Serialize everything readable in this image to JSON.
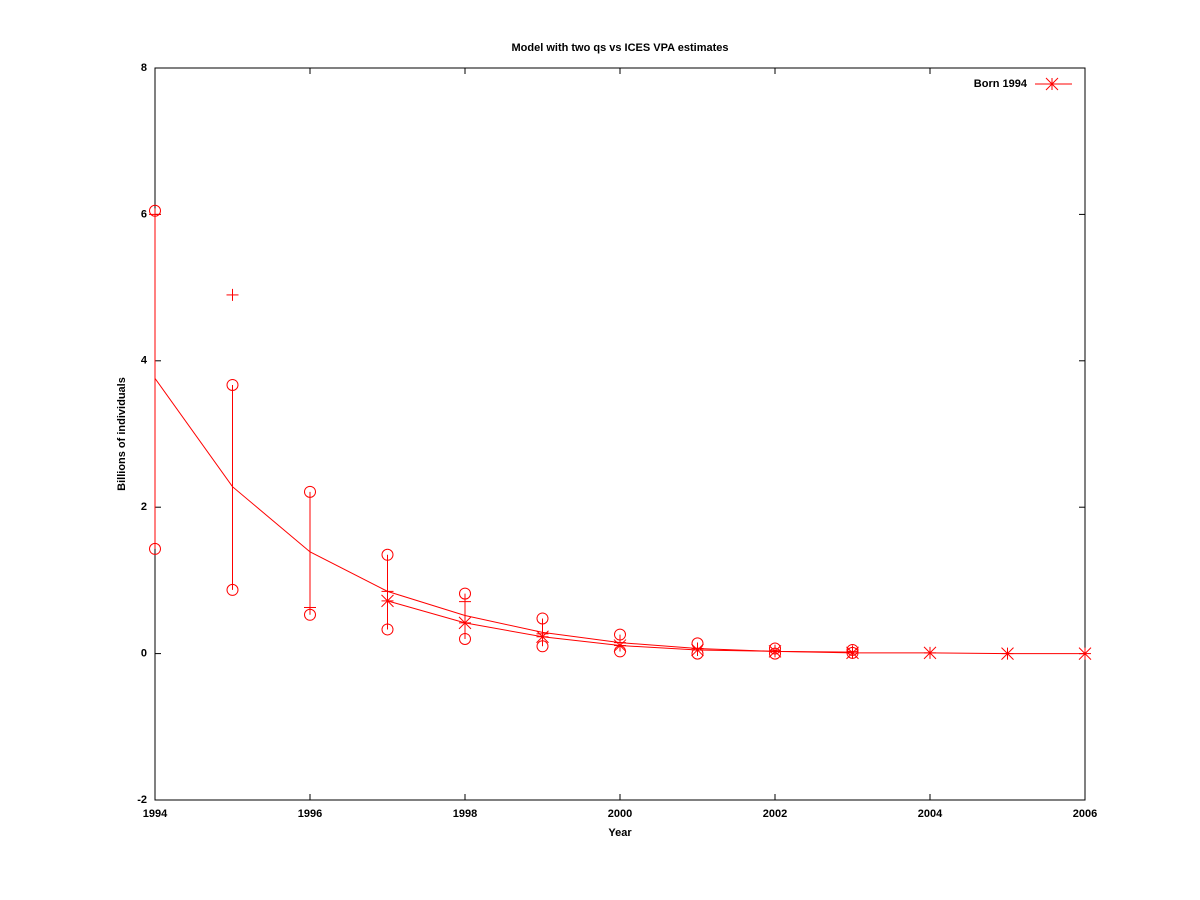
{
  "chart_data": {
    "type": "line",
    "title": "Model with two qs vs ICES VPA estimates",
    "xlabel": "Year",
    "ylabel": "Billions of individuals",
    "xlim": [
      1994,
      2006
    ],
    "xticks": [
      1994,
      1996,
      1998,
      2000,
      2002,
      2004,
      2006
    ],
    "ylim": [
      -2,
      8
    ],
    "yticks": [
      -2,
      0,
      2,
      4,
      6,
      8
    ],
    "legend": "top-right",
    "series": [
      {
        "name": "Born 1994",
        "color": "#ff0000",
        "marker": "asterisk",
        "x": [
          1997,
          1998,
          1999,
          2000,
          2001,
          2002,
          2003,
          2004,
          2005,
          2006
        ],
        "values": [
          0.72,
          0.42,
          0.23,
          0.11,
          0.05,
          0.03,
          0.01,
          0.01,
          0.0,
          0.0
        ]
      },
      {
        "color": "#ff0000",
        "marker": "none",
        "x": [
          1994,
          1995,
          1996,
          1997,
          1998,
          1999,
          2000,
          2001,
          2002,
          2003
        ],
        "values": [
          3.76,
          2.28,
          1.39,
          0.85,
          0.52,
          0.29,
          0.15,
          0.07,
          0.03,
          0.02
        ]
      },
      {
        "color": "#ff0000",
        "marker": "errorbar",
        "x": [
          1994,
          1995,
          1996,
          1997,
          1998,
          1999,
          2000,
          2001,
          2002,
          2003
        ],
        "values": [
          6.0,
          4.9,
          0.63,
          0.85,
          0.71,
          0.27,
          0.15,
          0.07,
          0.04,
          0.03
        ],
        "low": [
          1.43,
          0.87,
          0.53,
          0.33,
          0.2,
          0.1,
          0.03,
          0.0,
          0.0,
          0.01
        ],
        "high": [
          6.05,
          3.67,
          2.21,
          1.35,
          0.82,
          0.48,
          0.26,
          0.14,
          0.07,
          0.05
        ]
      }
    ]
  }
}
